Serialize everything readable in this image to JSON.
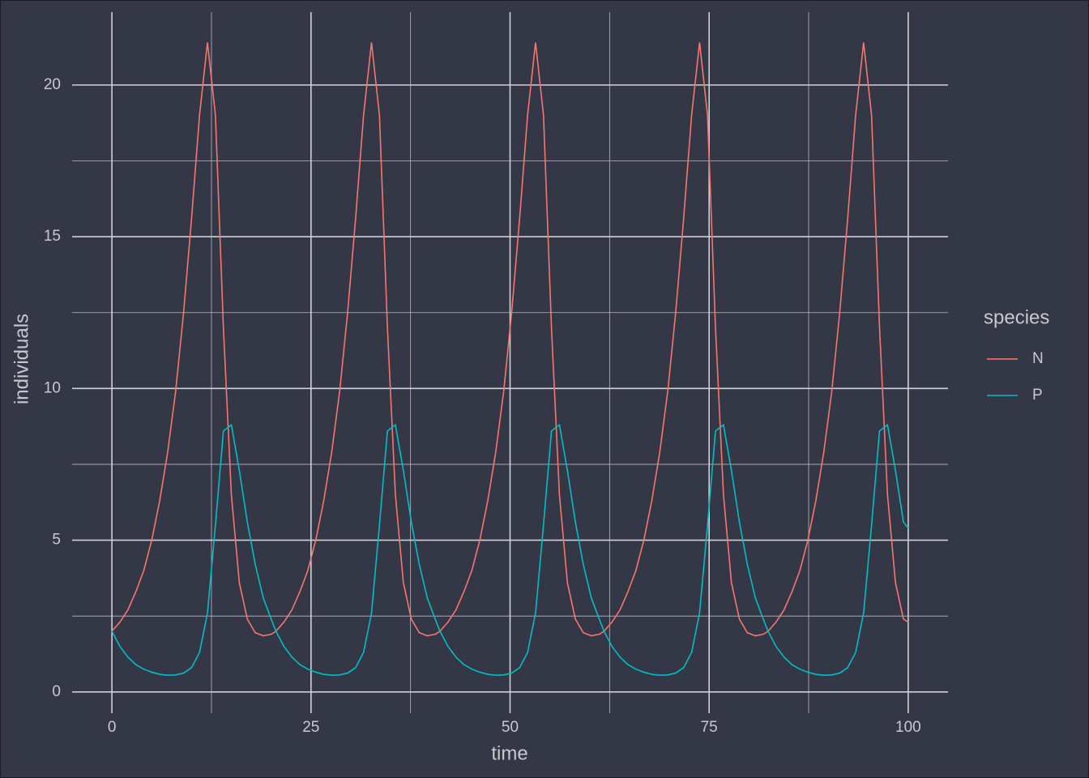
{
  "chart_data": {
    "type": "line",
    "xlabel": "time",
    "ylabel": "individuals",
    "legend_title": "species",
    "legend_position": "right",
    "xlim": [
      -5,
      105
    ],
    "ylim": [
      -0.7,
      22.4
    ],
    "xticks": [
      0,
      25,
      50,
      75,
      100
    ],
    "yticks": [
      0,
      5,
      10,
      15,
      20
    ],
    "xminorticks": [
      12.5,
      37.5,
      62.5,
      87.5
    ],
    "yminorticks": [
      2.5,
      7.5,
      12.5,
      17.5
    ],
    "grid": true,
    "x": [
      0,
      1,
      2,
      3,
      4,
      5,
      6,
      7,
      8,
      9,
      10,
      11,
      12,
      13,
      14,
      15,
      16,
      17,
      18,
      19,
      20,
      20.6,
      21.6,
      22.6,
      23.6,
      24.6,
      25.6,
      26.6,
      27.6,
      28.6,
      29.6,
      30.6,
      31.6,
      32.6,
      33.6,
      34.6,
      35.6,
      36.6,
      37.6,
      38.6,
      39.6,
      40.6,
      41.2,
      42.2,
      43.2,
      44.2,
      45.2,
      46.2,
      47.2,
      48.2,
      49.2,
      50.2,
      51.2,
      52.2,
      53.2,
      54.2,
      55.2,
      56.2,
      57.2,
      58.2,
      59.2,
      60.2,
      61.2,
      61.8,
      62.8,
      63.8,
      64.8,
      65.8,
      66.8,
      67.8,
      68.8,
      69.8,
      70.8,
      71.8,
      72.8,
      73.8,
      74.8,
      75.8,
      76.8,
      77.8,
      78.8,
      79.8,
      80.8,
      81.8,
      82.4,
      83.4,
      84.4,
      85.4,
      86.4,
      87.4,
      88.4,
      89.4,
      90.4,
      91.4,
      92.4,
      93.4,
      94.4,
      95.4,
      96.4,
      97.4,
      98.4,
      99.4,
      100
    ],
    "series": [
      {
        "name": "N",
        "color": "#F8766D",
        "values": [
          2.0,
          2.3,
          2.7,
          3.3,
          4.0,
          5.0,
          6.3,
          7.9,
          9.9,
          12.5,
          15.6,
          19.0,
          21.4,
          19.0,
          12.0,
          6.5,
          3.6,
          2.4,
          1.95,
          1.85,
          1.9,
          2.0,
          2.3,
          2.7,
          3.3,
          4.0,
          5.0,
          6.3,
          7.9,
          9.9,
          12.5,
          15.6,
          19.0,
          21.4,
          19.0,
          12.0,
          6.5,
          3.6,
          2.4,
          1.95,
          1.85,
          1.9,
          2.0,
          2.3,
          2.7,
          3.3,
          4.0,
          5.0,
          6.3,
          7.9,
          9.9,
          12.5,
          15.6,
          19.0,
          21.4,
          19.0,
          12.0,
          6.5,
          3.6,
          2.4,
          1.95,
          1.85,
          1.9,
          2.0,
          2.3,
          2.7,
          3.3,
          4.0,
          5.0,
          6.3,
          7.9,
          9.9,
          12.5,
          15.6,
          19.0,
          21.4,
          19.0,
          12.0,
          6.5,
          3.6,
          2.4,
          1.95,
          1.85,
          1.9,
          2.0,
          2.3,
          2.7,
          3.3,
          4.0,
          5.0,
          6.3,
          7.9,
          9.9,
          12.5,
          15.6,
          19.0,
          21.4,
          19.0,
          12.0,
          6.5,
          3.6,
          2.4,
          2.3
        ]
      },
      {
        "name": "P",
        "color": "#00BFC4",
        "values": [
          2.0,
          1.5,
          1.15,
          0.9,
          0.75,
          0.65,
          0.58,
          0.55,
          0.56,
          0.62,
          0.8,
          1.3,
          2.6,
          5.5,
          8.6,
          8.8,
          7.3,
          5.6,
          4.2,
          3.1,
          2.4,
          2.0,
          1.5,
          1.15,
          0.9,
          0.75,
          0.65,
          0.58,
          0.55,
          0.56,
          0.62,
          0.8,
          1.3,
          2.6,
          5.5,
          8.6,
          8.8,
          7.3,
          5.6,
          4.2,
          3.1,
          2.4,
          2.0,
          1.5,
          1.15,
          0.9,
          0.75,
          0.65,
          0.58,
          0.55,
          0.56,
          0.62,
          0.8,
          1.3,
          2.6,
          5.5,
          8.6,
          8.8,
          7.3,
          5.6,
          4.2,
          3.1,
          2.4,
          2.0,
          1.5,
          1.15,
          0.9,
          0.75,
          0.65,
          0.58,
          0.55,
          0.56,
          0.62,
          0.8,
          1.3,
          2.6,
          5.5,
          8.6,
          8.8,
          7.3,
          5.6,
          4.2,
          3.1,
          2.4,
          2.0,
          1.5,
          1.15,
          0.9,
          0.75,
          0.65,
          0.58,
          0.55,
          0.56,
          0.62,
          0.8,
          1.3,
          2.6,
          5.5,
          8.6,
          8.8,
          7.3,
          5.6,
          5.4
        ]
      }
    ]
  }
}
